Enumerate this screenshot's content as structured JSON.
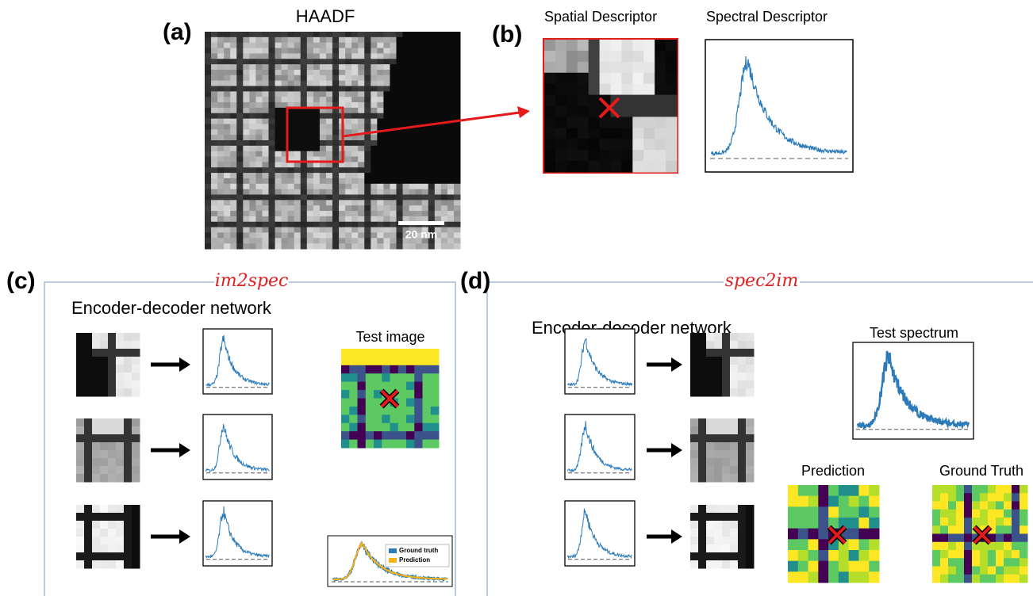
{
  "panel_a": {
    "label": "(a)",
    "title": "HAADF",
    "scale_bar": "20 nm"
  },
  "panel_b": {
    "label": "(b)",
    "spatial_title": "Spatial Descriptor",
    "spectral_title": "Spectral Descriptor"
  },
  "panel_c": {
    "label": "(c)",
    "title": "im2spec",
    "subtitle": "Encoder-decoder network",
    "test_title": "Test image",
    "legend": [
      "Ground truth",
      "Prediction"
    ]
  },
  "panel_d": {
    "label": "(d)",
    "title": "spec2im",
    "subtitle": "Encoder-decoder network",
    "test_title": "Test spectrum",
    "prediction_title": "Prediction",
    "truth_title": "Ground Truth"
  }
}
